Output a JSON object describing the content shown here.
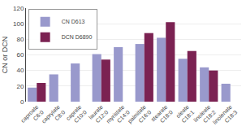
{
  "chart_data": {
    "type": "bar",
    "categories": [
      "caproate\nC6:0",
      "caprylate\nC8:0",
      "caprate\nC10:0",
      "laurate\nC12:0",
      "myristate\nC14:0",
      "palmitate\nC16:0",
      "stearate\nC18:0",
      "oleate\nC18:1",
      "linoleate\nC18:2",
      "linolenate\nC18:3"
    ],
    "series": [
      {
        "name": "CN D613",
        "color": "#9999cc",
        "values": [
          18,
          35,
          49,
          61,
          70,
          74,
          82,
          55,
          44,
          23
        ]
      },
      {
        "name": "DCN D6890",
        "color": "#7b2252",
        "values": [
          24,
          null,
          null,
          54,
          null,
          88,
          102,
          65,
          40,
          null
        ]
      }
    ],
    "ylabel": "CN or DCN",
    "ylim": [
      0,
      120
    ],
    "yticks": [
      0,
      20,
      40,
      60,
      80,
      100,
      120
    ],
    "grid": true,
    "legend": "upper left"
  }
}
